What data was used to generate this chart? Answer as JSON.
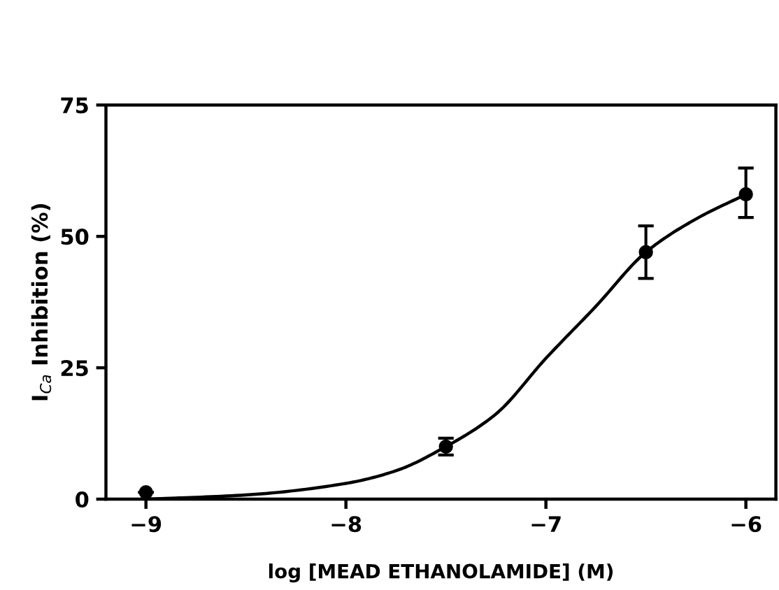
{
  "chart_data": {
    "type": "line",
    "xlabel": "log [MEAD ETHANOLAMIDE] (M)",
    "ylabel": "I$_{Ca}$ Inhibition (%)",
    "xlim": [
      -9.2,
      -5.85
    ],
    "ylim": [
      0,
      75
    ],
    "xticks": [
      -9,
      -8,
      -7,
      -6
    ],
    "yticks": [
      0,
      25,
      50,
      75
    ],
    "grid": false,
    "legend": false,
    "series": [
      {
        "type": "scatter",
        "color": "#000000",
        "marker": "circle",
        "x": [
          -9,
          -7.5,
          -6.5,
          -6
        ],
        "values": [
          1.3,
          10,
          47,
          58
        ],
        "errors": [
          null,
          [
            8.4,
            11.6
          ],
          [
            42,
            52
          ],
          [
            53.6,
            63
          ]
        ]
      },
      {
        "color": "#000000",
        "marker": "none",
        "line_style": "solid",
        "x": [
          -9,
          -8.5,
          -8,
          -7.75,
          -7.5,
          -7.25,
          -7,
          -6.75,
          -6.5,
          -6.25,
          -6
        ],
        "values": [
          0,
          0.8,
          3,
          5.4,
          10,
          16.2,
          26.8,
          36.7,
          47,
          53.3,
          58
        ]
      }
    ]
  }
}
